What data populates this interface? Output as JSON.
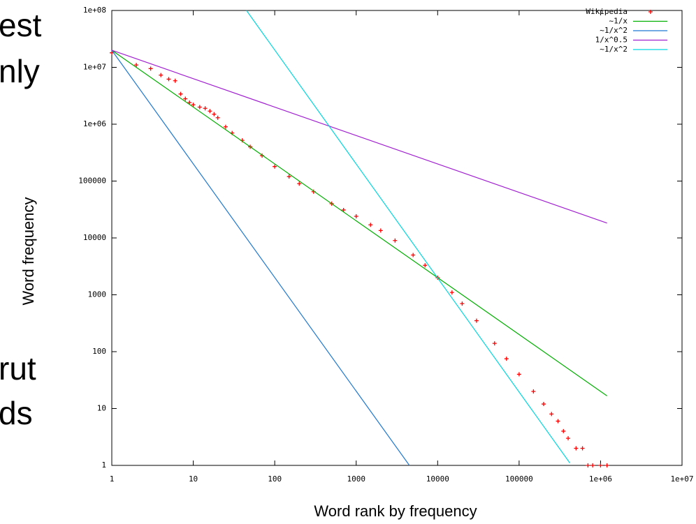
{
  "slide_fragments": [
    "est",
    "nly",
    "rut",
    "ds"
  ],
  "chart_data": {
    "type": "scatter",
    "xlabel": "Word rank by frequency",
    "ylabel": "Word frequency",
    "log_x": true,
    "log_y": true,
    "grid": false,
    "legend": "top-right",
    "xlim": [
      1,
      10000000
    ],
    "ylim": [
      1,
      100000000
    ],
    "xticks": [
      1,
      10,
      100,
      1000,
      10000,
      100000,
      {
        "value": 1000000,
        "label": "1e+06"
      },
      {
        "value": 10000000,
        "label": "1e+07"
      }
    ],
    "yticks": [
      1,
      10,
      100,
      1000,
      10000,
      100000,
      {
        "value": 1000000,
        "label": "1e+06"
      },
      {
        "value": 10000000,
        "label": "1e+07"
      },
      {
        "value": 100000000,
        "label": "1e+08"
      }
    ],
    "series": [
      {
        "name": "Wikipedia",
        "color": "#ff0000",
        "style": "points",
        "x": [
          1,
          2,
          3,
          4,
          5,
          6,
          7,
          8,
          9,
          10,
          12,
          14,
          16,
          18,
          20,
          25,
          30,
          40,
          50,
          70,
          100,
          150,
          200,
          300,
          500,
          700,
          1000,
          1500,
          2000,
          3000,
          5000,
          7000,
          10000,
          15000,
          20000,
          30000,
          50000,
          70000,
          100000,
          150000,
          200000,
          250000,
          300000,
          350000,
          400000,
          500000,
          600000,
          700000,
          800000,
          1000000,
          1200000
        ],
        "values": [
          18000000,
          11000000,
          9500000,
          7300000,
          6200000,
          5800000,
          3400000,
          2800000,
          2400000,
          2200000,
          2000000,
          1900000,
          1700000,
          1500000,
          1300000,
          900000,
          700000,
          520000,
          400000,
          280000,
          180000,
          120000,
          90000,
          65000,
          40000,
          31000,
          24000,
          17000,
          13500,
          9000,
          5000,
          3300,
          2000,
          1100,
          700,
          350,
          140,
          75,
          40,
          20,
          12,
          8,
          6,
          4,
          3,
          2,
          2,
          1,
          1,
          1,
          1
        ]
      },
      {
        "name": "~1/x",
        "color": "#00b000",
        "style": "line",
        "x": [
          1,
          1200000
        ],
        "values": [
          20000000,
          16.7
        ]
      },
      {
        "name": "~1/x^2",
        "color": "#1e78d2",
        "style": "line",
        "x": [
          1,
          4500
        ],
        "values": [
          20000000,
          1
        ]
      },
      {
        "name": "1/x^0.5",
        "color": "#a020d0",
        "style": "line",
        "x": [
          1,
          1200000
        ],
        "values": [
          20000000,
          18257
        ]
      },
      {
        "name": "~1/x^2",
        "color": "#00d8e0",
        "style": "line",
        "x": [
          45,
          420000
        ],
        "values": [
          100000000,
          1.1
        ]
      }
    ]
  }
}
